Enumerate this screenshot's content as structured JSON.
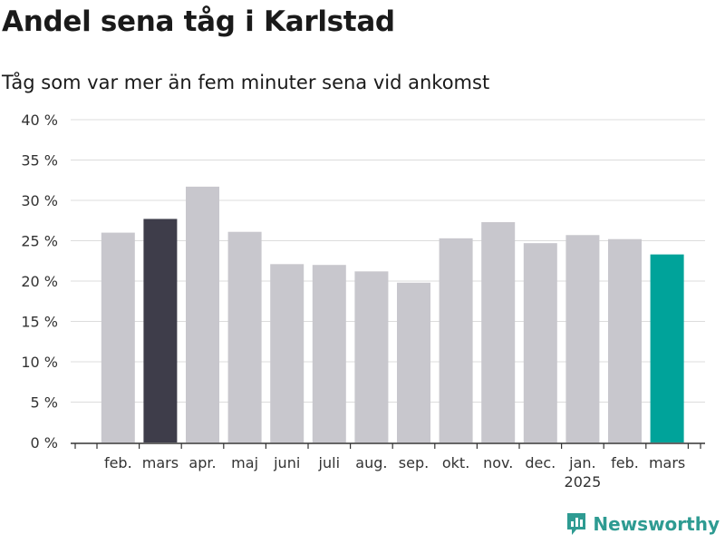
{
  "title": "Andel sena tåg i Karlstad",
  "subtitle": "Tåg som var mer än fem minuter sena vid ankomst",
  "brand": "Newsworthy",
  "colors": {
    "default": "#c8c7cd",
    "highlight_prev": "#3e3d4a",
    "highlight_current": "#00a39a",
    "grid": "#dcdcdc",
    "axis": "#333333"
  },
  "chart_data": {
    "type": "bar",
    "categories": [
      "feb.",
      "mars",
      "apr.",
      "maj",
      "juni",
      "juli",
      "aug.",
      "sep.",
      "okt.",
      "nov.",
      "dec.",
      "jan.",
      "feb.",
      "mars"
    ],
    "year_label": {
      "under_index": 11,
      "text": "2025"
    },
    "values": [
      26.0,
      27.7,
      31.7,
      26.1,
      22.1,
      22.0,
      21.2,
      19.8,
      25.3,
      27.3,
      24.7,
      25.7,
      25.2,
      23.3
    ],
    "highlight": {
      "1": "highlight_prev",
      "13": "highlight_current"
    },
    "ylim": [
      0,
      40
    ],
    "yticks": [
      0,
      5,
      10,
      15,
      20,
      25,
      30,
      35,
      40
    ],
    "ytick_labels": [
      "0 %",
      "5 %",
      "10 %",
      "15 %",
      "20 %",
      "25 %",
      "30 %",
      "35 %",
      "40 %"
    ],
    "grid": true,
    "xlabel": "",
    "ylabel": ""
  }
}
